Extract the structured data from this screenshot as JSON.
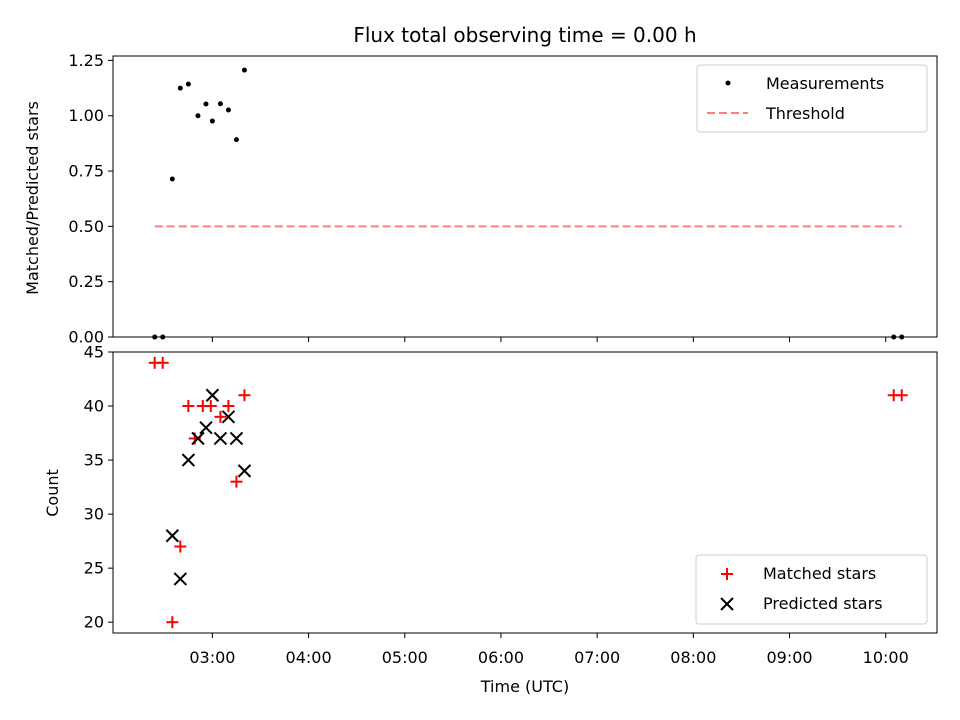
{
  "figure": {
    "title": "Flux total observing time = 0.00 h",
    "xlabel": "Time (UTC)"
  },
  "chart_data": [
    {
      "type": "scatter",
      "ylabel": "Matched/Predicted stars",
      "xlim": [
        "01:58",
        "10:32"
      ],
      "ylim": [
        0,
        1.27
      ],
      "yticks": [
        0.0,
        0.25,
        0.5,
        0.75,
        1.0,
        1.25
      ],
      "ytick_labels": [
        "0.00",
        "0.25",
        "0.50",
        "0.75",
        "1.00",
        "1.25"
      ],
      "grid": false,
      "legend_position": "upper right",
      "series": [
        {
          "name": "Measurements",
          "marker": "dot",
          "color": "#000000",
          "points": [
            [
              "02:24",
              0.0
            ],
            [
              "02:29",
              0.0
            ],
            [
              "02:35",
              0.714
            ],
            [
              "02:40",
              1.125
            ],
            [
              "02:45",
              1.143
            ],
            [
              "02:51",
              1.0
            ],
            [
              "02:56",
              1.053
            ],
            [
              "03:00",
              0.976
            ],
            [
              "03:05",
              1.054
            ],
            [
              "03:10",
              1.026
            ],
            [
              "03:15",
              0.892
            ],
            [
              "03:20",
              1.206
            ],
            [
              "10:05",
              0.0
            ],
            [
              "10:10",
              0.0
            ]
          ]
        },
        {
          "name": "Threshold",
          "marker": "dashed-line",
          "color": "#ff7f7f",
          "points": [
            [
              "02:24",
              0.5
            ],
            [
              "10:10",
              0.5
            ]
          ]
        }
      ]
    },
    {
      "type": "scatter",
      "ylabel": "Count",
      "ylim": [
        19,
        45
      ],
      "yticks": [
        20,
        25,
        30,
        35,
        40,
        45
      ],
      "ytick_labels": [
        "20",
        "25",
        "30",
        "35",
        "40",
        "45"
      ],
      "xticks": [
        "03:00",
        "04:00",
        "05:00",
        "06:00",
        "07:00",
        "08:00",
        "09:00",
        "10:00"
      ],
      "xtick_labels": [
        "03:00",
        "04:00",
        "05:00",
        "06:00",
        "07:00",
        "08:00",
        "09:00",
        "10:00"
      ],
      "grid": false,
      "legend_position": "lower right",
      "series": [
        {
          "name": "Matched stars",
          "marker": "plus",
          "color": "#ff0000",
          "points": [
            [
              "02:24",
              44
            ],
            [
              "02:29",
              44
            ],
            [
              "02:35",
              20
            ],
            [
              "02:40",
              27
            ],
            [
              "02:45",
              40
            ],
            [
              "02:49",
              37
            ],
            [
              "02:54",
              40
            ],
            [
              "02:59",
              40
            ],
            [
              "03:05",
              39
            ],
            [
              "03:10",
              40
            ],
            [
              "03:15",
              33
            ],
            [
              "03:20",
              41
            ],
            [
              "10:05",
              41
            ],
            [
              "10:10",
              41
            ]
          ]
        },
        {
          "name": "Predicted stars",
          "marker": "x",
          "color": "#000000",
          "points": [
            [
              "02:35",
              28
            ],
            [
              "02:40",
              24
            ],
            [
              "02:45",
              35
            ],
            [
              "02:51",
              37
            ],
            [
              "02:56",
              38
            ],
            [
              "03:00",
              41
            ],
            [
              "03:05",
              37
            ],
            [
              "03:10",
              39
            ],
            [
              "03:15",
              37
            ],
            [
              "03:20",
              34
            ]
          ]
        }
      ]
    }
  ]
}
